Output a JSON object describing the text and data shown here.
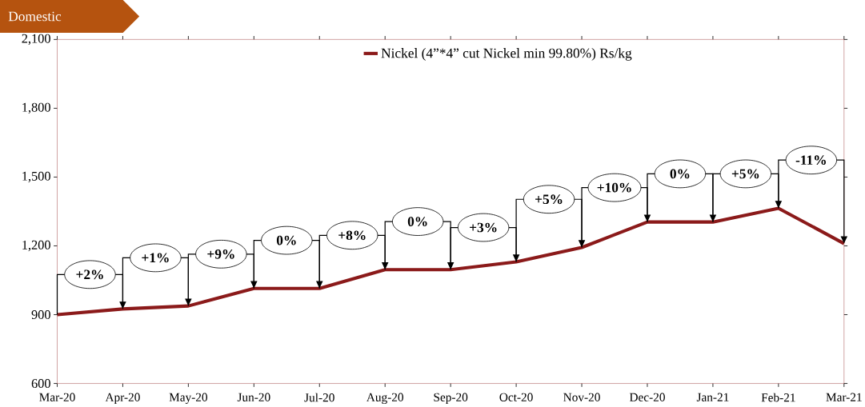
{
  "chart_data": {
    "type": "line",
    "categories": [
      "Mar-20",
      "Apr-20",
      "May-20",
      "Jun-20",
      "Jul-20",
      "Aug-20",
      "Sep-20",
      "Oct-20",
      "Nov-20",
      "Dec-20",
      "Jan-21",
      "Feb-21",
      "Mar-21"
    ],
    "series": [
      {
        "name": "Nickel (4”*4” cut Nickel min 99.80%) Rs/kg",
        "color": "#8b1a1a",
        "values": [
          900,
          925,
          938,
          1014,
          1014,
          1096,
          1096,
          1130,
          1193,
          1304,
          1304,
          1364,
          1210
        ]
      }
    ],
    "ylim": [
      600,
      2100
    ],
    "yticks": [
      600,
      900,
      {
        "value": 1200,
        "label": "1,200"
      },
      {
        "value": 1500,
        "label": "1,500"
      },
      {
        "value": 1800,
        "label": "1,800"
      },
      {
        "value": 2100,
        "label": "2,100"
      }
    ],
    "legend": "top",
    "marker": "none",
    "line_style": "solid",
    "grid": false,
    "annotations": [
      "Domestic",
      "+2%",
      "+1%",
      "+9%",
      "0%",
      "+8%",
      "0%",
      "+3%",
      "+5%",
      "+10%",
      "0%",
      "+5%",
      "-11%"
    ]
  }
}
